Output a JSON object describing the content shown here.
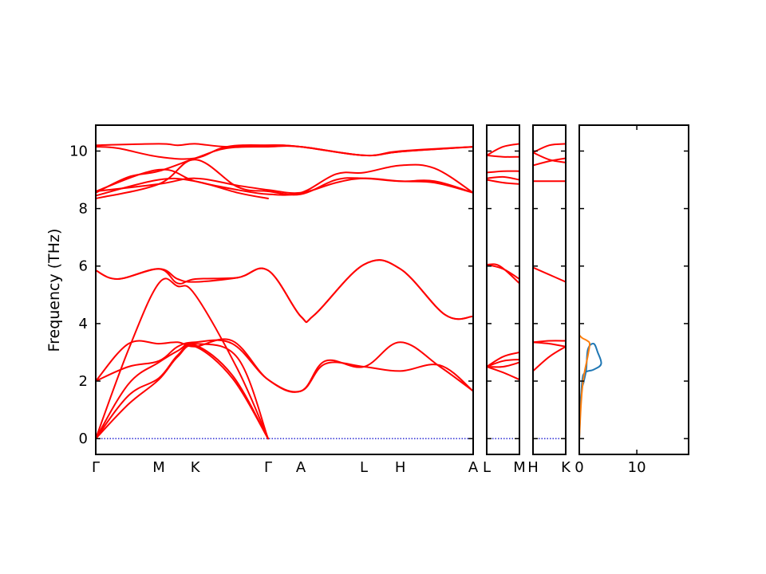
{
  "chart_data": {
    "type": "line",
    "ylabel": "Frequency (THz)",
    "ylim": [
      -0.55,
      10.9
    ],
    "y_ticks": [
      "0",
      "2",
      "4",
      "6",
      "8",
      "10"
    ],
    "y_tick_values": [
      0,
      2,
      4,
      6,
      8,
      10
    ],
    "colors": {
      "band": "#ff0000",
      "zero_line": "#0000cc",
      "dos_series_1": "#1f77b4",
      "dos_series_2": "#ff7f0e",
      "dos_total": "#000000"
    },
    "panels": [
      {
        "id": "main",
        "x_labels": [
          "Γ",
          "M",
          "K",
          "Γ",
          "A",
          "L",
          "H",
          "A"
        ],
        "x_positions": [
          0,
          0.577,
          0.91,
          1.577,
          1.877,
          2.454,
          2.787,
          3.454
        ],
        "bands": [
          [
            [
              0,
              0
            ],
            [
              0.3,
              1.2
            ],
            [
              0.577,
              2.05
            ],
            [
              0.75,
              2.85
            ],
            [
              0.91,
              3.2
            ],
            [
              1.25,
              2.1
            ],
            [
              1.577,
              0
            ]
          ],
          [
            [
              0,
              0
            ],
            [
              0.3,
              1.5
            ],
            [
              0.577,
              2.1
            ],
            [
              0.75,
              2.9
            ],
            [
              0.91,
              3.25
            ],
            [
              1.25,
              2.2
            ],
            [
              1.577,
              0
            ]
          ],
          [
            [
              0,
              0
            ],
            [
              0.3,
              1.9
            ],
            [
              0.577,
              2.65
            ],
            [
              0.75,
              3.05
            ],
            [
              0.91,
              3.3
            ],
            [
              1.3,
              2.8
            ],
            [
              1.577,
              0
            ]
          ],
          [
            [
              0,
              0
            ],
            [
              0.3,
              3.1
            ],
            [
              0.577,
              5.4
            ],
            [
              0.75,
              5.3
            ],
            [
              0.91,
              5.0
            ],
            [
              1.3,
              2.4
            ],
            [
              1.577,
              0
            ]
          ],
          [
            [
              0,
              2.0
            ],
            [
              0.3,
              2.5
            ],
            [
              0.577,
              2.7
            ],
            [
              0.75,
              3.2
            ],
            [
              0.91,
              3.35
            ],
            [
              1.25,
              3.3
            ],
            [
              1.577,
              2.05
            ],
            [
              1.877,
              1.65
            ],
            [
              2.1,
              2.6
            ],
            [
              2.454,
              2.5
            ],
            [
              2.787,
              2.35
            ],
            [
              3.15,
              2.55
            ],
            [
              3.454,
              1.65
            ]
          ],
          [
            [
              0,
              2.0
            ],
            [
              0.3,
              3.3
            ],
            [
              0.577,
              3.3
            ],
            [
              0.75,
              3.35
            ],
            [
              0.91,
              3.2
            ],
            [
              1.25,
              3.4
            ],
            [
              1.577,
              2.05
            ],
            [
              1.877,
              1.65
            ],
            [
              2.1,
              2.7
            ],
            [
              2.454,
              2.5
            ],
            [
              2.787,
              3.35
            ],
            [
              3.15,
              2.5
            ],
            [
              3.454,
              1.65
            ]
          ],
          [
            [
              0,
              5.85
            ],
            [
              0.2,
              5.55
            ],
            [
              0.577,
              5.9
            ],
            [
              0.75,
              5.55
            ],
            [
              0.91,
              5.45
            ],
            [
              1.3,
              5.6
            ],
            [
              1.577,
              5.85
            ],
            [
              1.877,
              4.25
            ],
            [
              2.0,
              4.3
            ],
            [
              2.454,
              6.05
            ],
            [
              2.787,
              5.9
            ],
            [
              3.2,
              4.3
            ],
            [
              3.454,
              4.25
            ]
          ],
          [
            [
              0,
              5.85
            ],
            [
              0.2,
              5.55
            ],
            [
              0.577,
              5.9
            ],
            [
              0.75,
              5.4
            ],
            [
              0.91,
              5.55
            ],
            [
              1.3,
              5.6
            ],
            [
              1.577,
              5.85
            ],
            [
              1.877,
              4.25
            ],
            [
              2.0,
              4.3
            ],
            [
              2.454,
              6.05
            ],
            [
              2.787,
              5.9
            ],
            [
              3.2,
              4.3
            ],
            [
              3.454,
              4.25
            ]
          ],
          [
            [
              0,
              8.6
            ],
            [
              0.577,
              9.35
            ],
            [
              0.91,
              8.95
            ],
            [
              1.3,
              8.65
            ],
            [
              1.577,
              8.5
            ],
            [
              1.877,
              8.55
            ],
            [
              2.2,
              9.2
            ],
            [
              2.454,
              9.25
            ],
            [
              2.787,
              9.5
            ],
            [
              3.1,
              9.4
            ],
            [
              3.454,
              8.55
            ]
          ],
          [
            [
              0,
              8.6
            ],
            [
              0.577,
              8.85
            ],
            [
              0.91,
              9.05
            ],
            [
              1.3,
              8.8
            ],
            [
              1.577,
              8.65
            ],
            [
              1.877,
              8.55
            ],
            [
              2.2,
              8.9
            ],
            [
              2.454,
              9.05
            ],
            [
              2.787,
              8.95
            ],
            [
              3.1,
              8.9
            ],
            [
              3.454,
              8.55
            ]
          ],
          [
            [
              0,
              8.45
            ],
            [
              0.577,
              9.0
            ],
            [
              0.91,
              8.95
            ],
            [
              1.3,
              8.55
            ],
            [
              1.577,
              8.35
            ]
          ],
          [
            [
              0,
              8.35
            ],
            [
              0.577,
              8.85
            ],
            [
              0.91,
              9.7
            ],
            [
              1.3,
              8.75
            ],
            [
              1.577,
              8.6
            ],
            [
              1.877,
              8.5
            ],
            [
              2.2,
              9.0
            ],
            [
              2.454,
              9.05
            ],
            [
              2.787,
              8.95
            ],
            [
              3.1,
              8.95
            ],
            [
              3.454,
              8.55
            ]
          ],
          [
            [
              0,
              8.55
            ],
            [
              0.3,
              9.1
            ],
            [
              0.577,
              9.3
            ],
            [
              0.91,
              9.75
            ],
            [
              1.2,
              10.1
            ],
            [
              1.577,
              10.15
            ],
            [
              1.877,
              10.15
            ],
            [
              2.454,
              9.85
            ],
            [
              2.787,
              9.98
            ],
            [
              3.454,
              10.15
            ]
          ],
          [
            [
              0,
              10.15
            ],
            [
              0.2,
              10.1
            ],
            [
              0.577,
              9.8
            ],
            [
              0.91,
              9.75
            ],
            [
              1.2,
              10.15
            ],
            [
              1.577,
              10.2
            ],
            [
              1.877,
              10.15
            ],
            [
              2.454,
              9.85
            ],
            [
              2.787,
              9.98
            ],
            [
              3.454,
              10.15
            ]
          ],
          [
            [
              0,
              10.2
            ],
            [
              0.577,
              10.25
            ],
            [
              0.75,
              10.2
            ],
            [
              0.91,
              10.25
            ],
            [
              1.2,
              10.15
            ],
            [
              1.577,
              10.2
            ],
            [
              1.877,
              10.15
            ],
            [
              2.454,
              9.85
            ],
            [
              2.787,
              10.0
            ],
            [
              3.454,
              10.15
            ]
          ]
        ]
      },
      {
        "id": "L-M",
        "x_labels": [
          "L",
          "M"
        ],
        "x_positions": [
          0,
          1
        ],
        "bands": [
          [
            [
              0,
              2.5
            ],
            [
              0.5,
              2.3
            ],
            [
              1,
              2.05
            ]
          ],
          [
            [
              0,
              2.5
            ],
            [
              0.5,
              2.5
            ],
            [
              1,
              2.65
            ]
          ],
          [
            [
              0,
              2.5
            ],
            [
              0.5,
              2.7
            ],
            [
              1,
              2.75
            ]
          ],
          [
            [
              0,
              2.5
            ],
            [
              0.5,
              2.85
            ],
            [
              1,
              3.0
            ]
          ],
          [
            [
              0,
              6.05
            ],
            [
              0.4,
              6.0
            ],
            [
              1,
              5.4
            ]
          ],
          [
            [
              0,
              6.05
            ],
            [
              0.5,
              5.9
            ],
            [
              1,
              5.55
            ]
          ],
          [
            [
              0,
              9.25
            ],
            [
              0.5,
              9.3
            ],
            [
              1,
              9.3
            ]
          ],
          [
            [
              0,
              9.0
            ],
            [
              0.5,
              8.9
            ],
            [
              1,
              8.85
            ]
          ],
          [
            [
              0,
              9.05
            ],
            [
              0.5,
              9.1
            ],
            [
              1,
              9.0
            ]
          ],
          [
            [
              0,
              9.85
            ],
            [
              0.5,
              10.15
            ],
            [
              1,
              10.25
            ]
          ],
          [
            [
              0,
              9.85
            ],
            [
              0.5,
              9.8
            ],
            [
              1,
              9.8
            ]
          ]
        ]
      },
      {
        "id": "H-K",
        "x_labels": [
          "H",
          "K"
        ],
        "x_positions": [
          0,
          1
        ],
        "bands": [
          [
            [
              0,
              2.35
            ],
            [
              0.5,
              2.85
            ],
            [
              1,
              3.2
            ]
          ],
          [
            [
              0,
              3.35
            ],
            [
              0.5,
              3.4
            ],
            [
              1,
              3.4
            ]
          ],
          [
            [
              0,
              3.35
            ],
            [
              0.5,
              3.3
            ],
            [
              1,
              3.2
            ]
          ],
          [
            [
              0,
              5.95
            ],
            [
              0.5,
              5.7
            ],
            [
              1,
              5.45
            ]
          ],
          [
            [
              0,
              9.5
            ],
            [
              0.5,
              9.65
            ],
            [
              1,
              9.75
            ]
          ],
          [
            [
              0,
              8.95
            ],
            [
              0.5,
              8.95
            ],
            [
              1,
              8.95
            ]
          ],
          [
            [
              0,
              9.95
            ],
            [
              0.5,
              10.2
            ],
            [
              1,
              10.25
            ]
          ],
          [
            [
              0,
              9.95
            ],
            [
              0.5,
              9.7
            ],
            [
              1,
              9.6
            ]
          ]
        ]
      },
      {
        "id": "dos",
        "x_labels": [
          "0",
          "10"
        ],
        "x_positions": [
          0,
          10
        ],
        "xlim": [
          0,
          19
        ],
        "series": [
          [
            [
              0,
              0
            ],
            [
              0.3,
              1.5
            ],
            [
              0.8,
              2.0
            ],
            [
              1.2,
              2.4
            ],
            [
              1.5,
              3.1
            ],
            [
              2.5,
              3.3
            ],
            [
              3.2,
              3.0
            ],
            [
              3.8,
              2.6
            ],
            [
              2.5,
              2.4
            ],
            [
              1.0,
              2.3
            ],
            [
              0.5,
              2.0
            ],
            [
              0.2,
              1.0
            ],
            [
              0,
              0.2
            ]
          ],
          [
            [
              0,
              0
            ],
            [
              0.3,
              1.2
            ],
            [
              0.6,
              1.9
            ],
            [
              0.9,
              2.3
            ],
            [
              1.2,
              2.6
            ],
            [
              1.6,
              3.0
            ],
            [
              1.8,
              3.3
            ],
            [
              1.4,
              3.4
            ],
            [
              0.5,
              3.5
            ],
            [
              0,
              3.6
            ]
          ]
        ]
      }
    ]
  }
}
